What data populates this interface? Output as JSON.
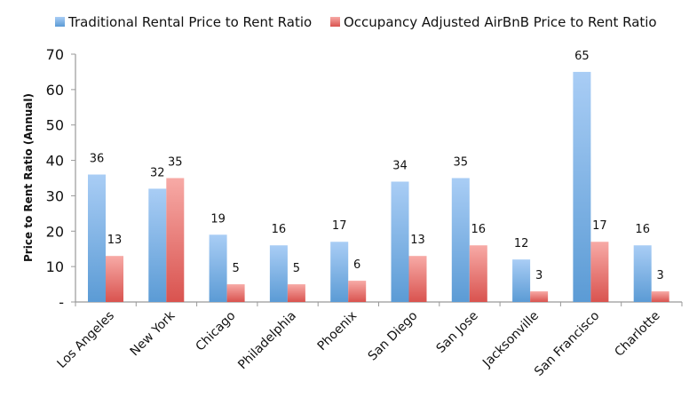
{
  "chart_data": {
    "type": "bar",
    "title": "",
    "xlabel": "",
    "ylabel": "Price to Rent Ratio (Annual)",
    "ylim": [
      0,
      70
    ],
    "yticks": [
      0,
      10,
      20,
      30,
      40,
      50,
      60,
      70
    ],
    "ytick_labels": [
      "-",
      "10",
      "20",
      "30",
      "40",
      "50",
      "60",
      "70"
    ],
    "grid": false,
    "legend_position": "top",
    "categories": [
      "Los Angeles",
      "New York",
      "Chicago",
      "Philadelphia",
      "Phoenix",
      "San Diego",
      "San Jose",
      "Jacksonville",
      "San Francisco",
      "Charlotte"
    ],
    "series": [
      {
        "name": "Traditional Rental Price to Rent Ratio",
        "color": "#5b9bd5",
        "values": [
          36,
          32,
          19,
          16,
          17,
          34,
          35,
          12,
          65,
          16
        ]
      },
      {
        "name": "Occupancy Adjusted AirBnB Price to Rent Ratio",
        "color": "#dc5a55",
        "values": [
          13,
          35,
          5,
          5,
          6,
          13,
          16,
          3,
          17,
          3
        ]
      }
    ]
  }
}
